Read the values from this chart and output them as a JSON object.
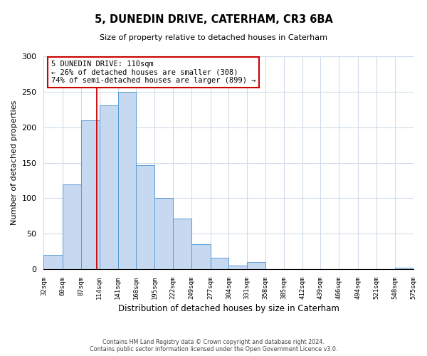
{
  "title": "5, DUNEDIN DRIVE, CATERHAM, CR3 6BA",
  "subtitle": "Size of property relative to detached houses in Caterham",
  "xlabel": "Distribution of detached houses by size in Caterham",
  "ylabel": "Number of detached properties",
  "bin_edges": [
    32,
    60,
    87,
    114,
    141,
    168,
    195,
    222,
    249,
    277,
    304,
    331,
    358,
    385,
    412,
    439,
    466,
    494,
    521,
    548,
    575
  ],
  "bin_labels": [
    "32sqm",
    "60sqm",
    "87sqm",
    "114sqm",
    "141sqm",
    "168sqm",
    "195sqm",
    "222sqm",
    "249sqm",
    "277sqm",
    "304sqm",
    "331sqm",
    "358sqm",
    "385sqm",
    "412sqm",
    "439sqm",
    "466sqm",
    "494sqm",
    "521sqm",
    "548sqm",
    "575sqm"
  ],
  "counts": [
    20,
    119,
    210,
    231,
    250,
    147,
    100,
    71,
    35,
    16,
    5,
    10,
    0,
    0,
    0,
    0,
    0,
    0,
    0,
    2
  ],
  "bar_color": "#c7d9f0",
  "bar_edge_color": "#5a9bd5",
  "vline_x": 110,
  "vline_color": "#cc0000",
  "annotation_title": "5 DUNEDIN DRIVE: 110sqm",
  "annotation_line1": "← 26% of detached houses are smaller (308)",
  "annotation_line2": "74% of semi-detached houses are larger (899) →",
  "annotation_box_color": "#ffffff",
  "annotation_box_edge": "#cc0000",
  "footer_line1": "Contains HM Land Registry data © Crown copyright and database right 2024.",
  "footer_line2": "Contains public sector information licensed under the Open Government Licence v3.0.",
  "ylim": [
    0,
    300
  ],
  "yticks": [
    0,
    50,
    100,
    150,
    200,
    250,
    300
  ],
  "background_color": "#ffffff",
  "grid_color": "#d0dcea"
}
